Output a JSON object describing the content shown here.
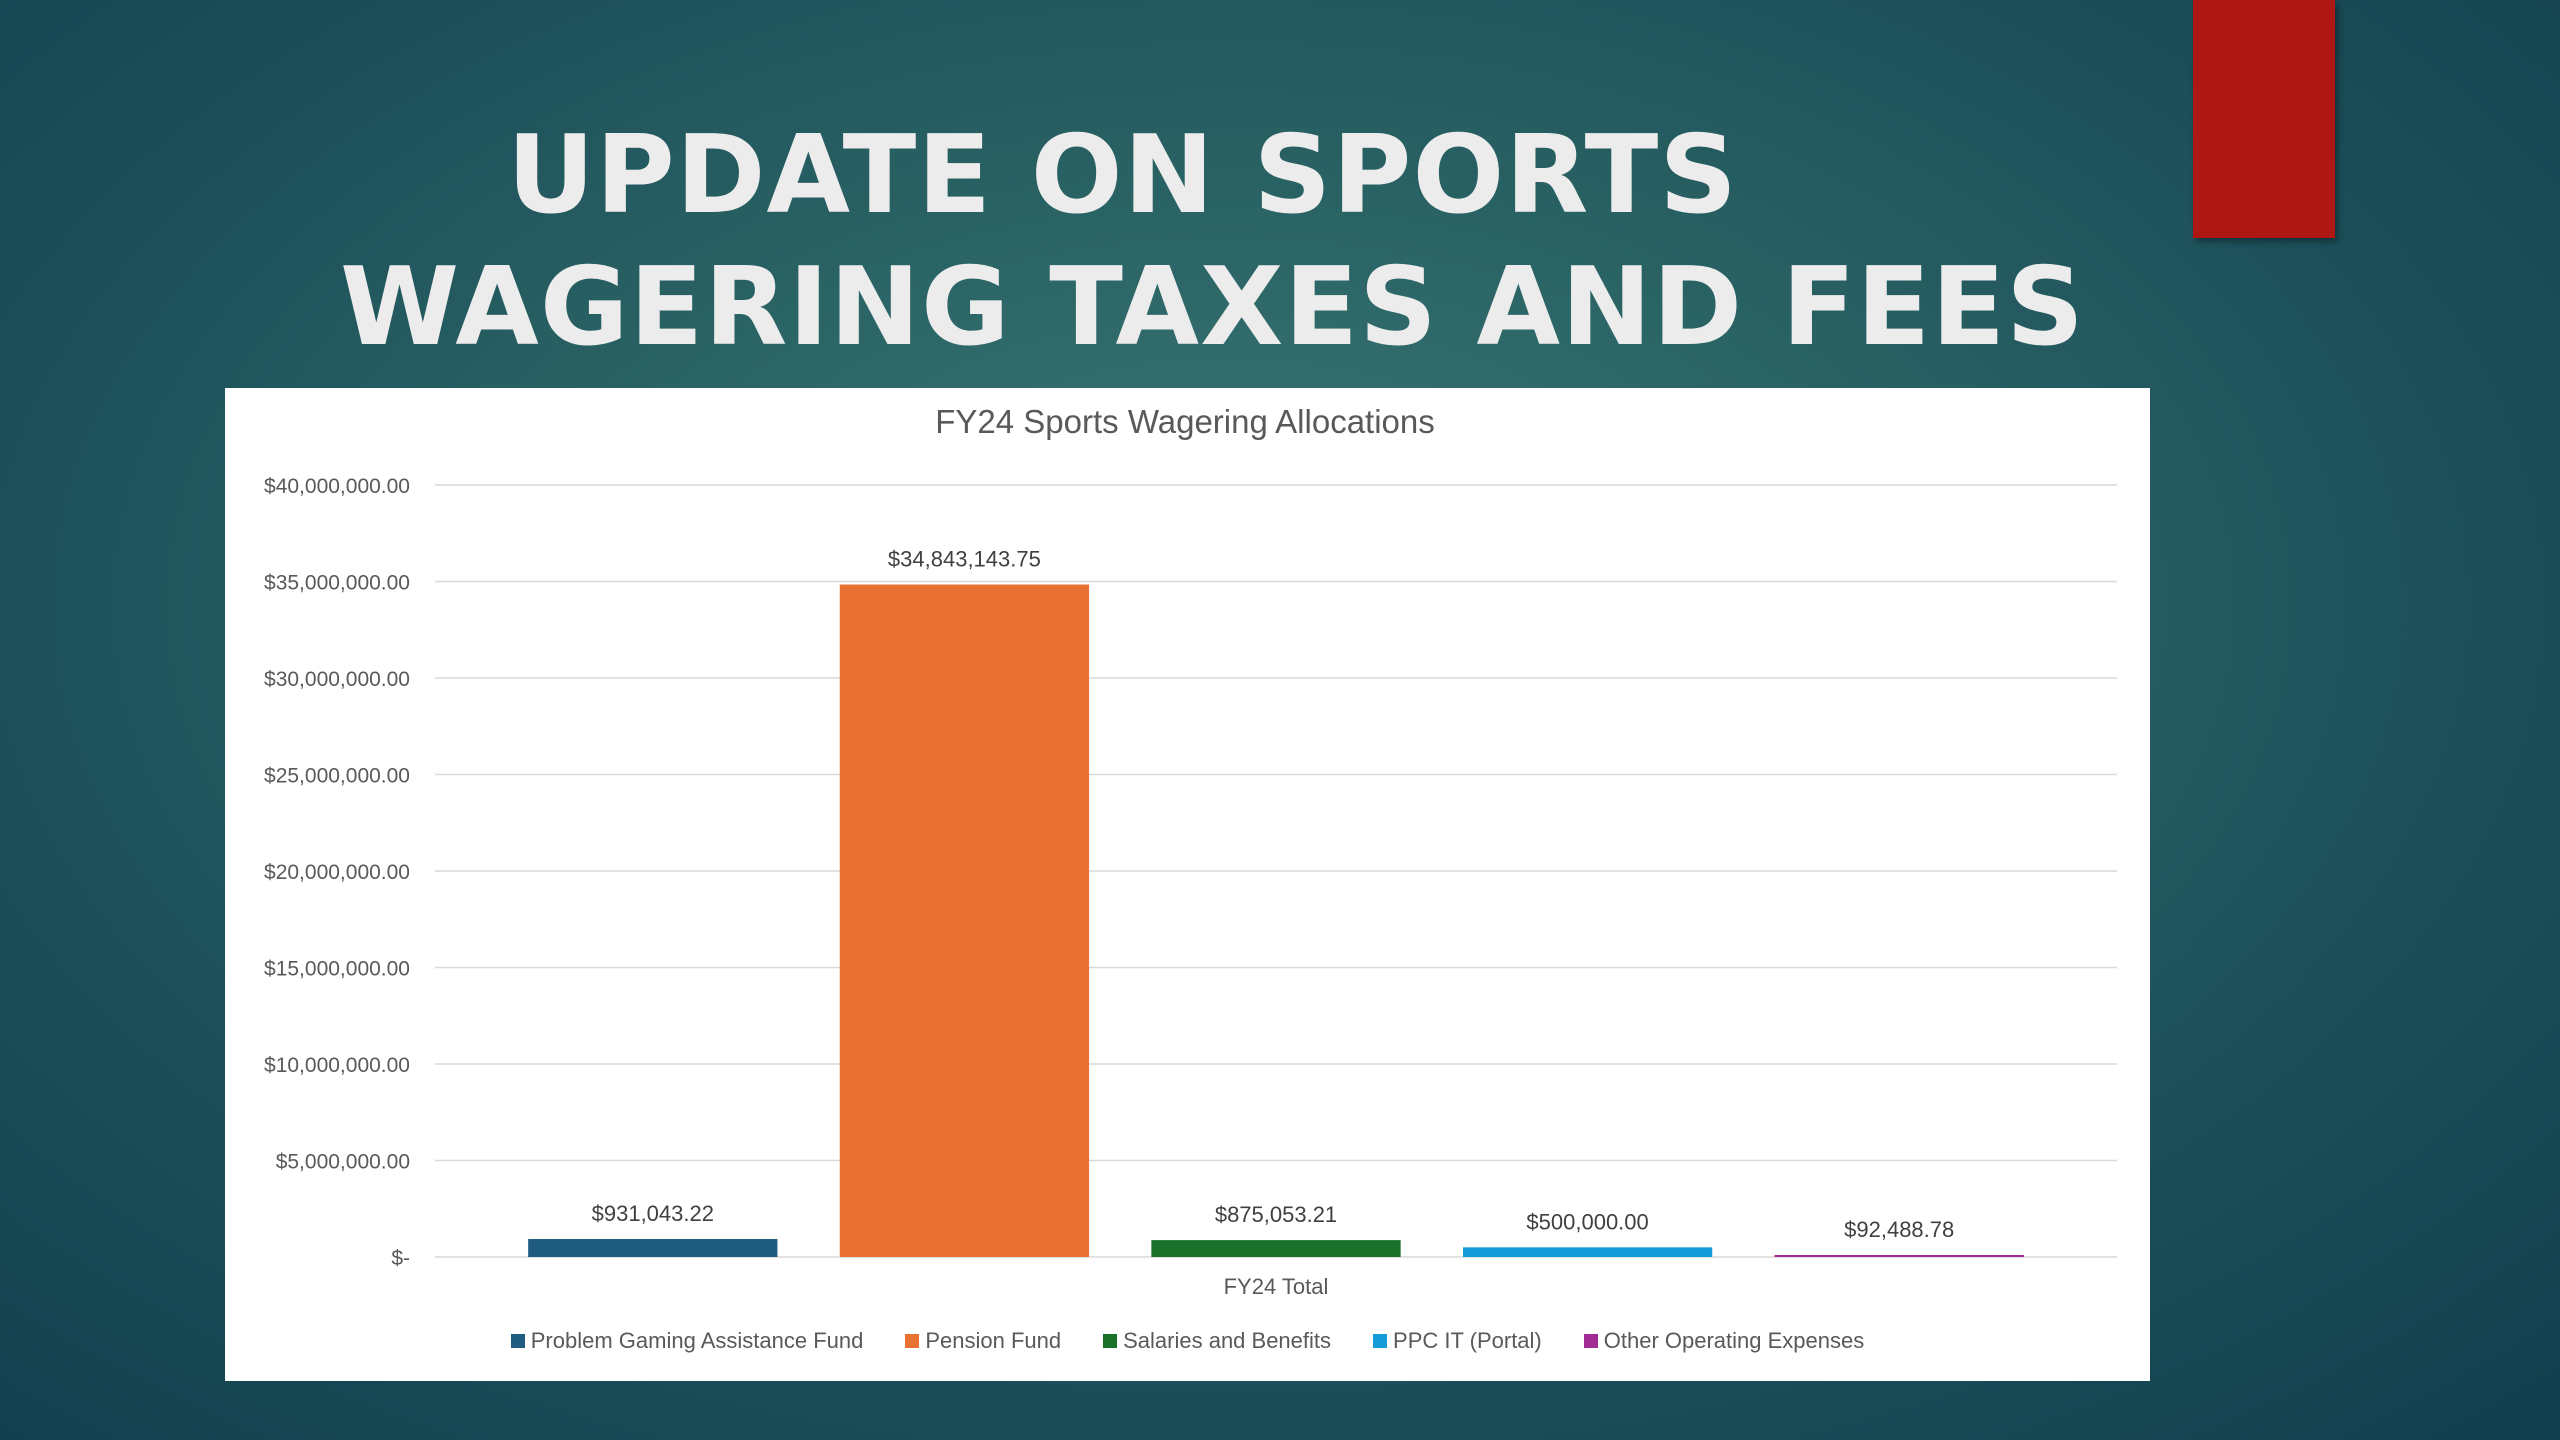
{
  "slide": {
    "title_line1": "UPDATE ON SPORTS",
    "title_line2": "WAGERING TAXES AND FEES"
  },
  "colors": {
    "accent_tab": "#ad1815"
  },
  "chart_data": {
    "type": "bar",
    "title": "FY24 Sports Wagering Allocations",
    "categories": [
      "FY24 Total"
    ],
    "series": [
      {
        "name": "Problem Gaming Assistance Fund",
        "values": [
          931043.22
        ],
        "label": "$931,043.22",
        "color": "#1f5c80"
      },
      {
        "name": "Pension Fund",
        "values": [
          34843143.75
        ],
        "label": "$34,843,143.75",
        "color": "#e97132"
      },
      {
        "name": "Salaries and Benefits",
        "values": [
          875053.21
        ],
        "label": "$875,053.21",
        "color": "#19712a"
      },
      {
        "name": "PPC IT (Portal)",
        "values": [
          500000.0
        ],
        "label": "$500,000.00",
        "color": "#159bd8"
      },
      {
        "name": "Other Operating Expenses",
        "values": [
          92488.78
        ],
        "label": "$92,488.78",
        "color": "#a02b93"
      }
    ],
    "ylim": [
      0,
      40000000
    ],
    "yticks": [
      0,
      5000000,
      10000000,
      15000000,
      20000000,
      25000000,
      30000000,
      35000000,
      40000000
    ],
    "ytick_labels": [
      "$-",
      "$5,000,000.00",
      "$10,000,000.00",
      "$15,000,000.00",
      "$20,000,000.00",
      "$25,000,000.00",
      "$30,000,000.00",
      "$35,000,000.00",
      "$40,000,000.00"
    ],
    "grid": true,
    "legend": "bottom"
  }
}
